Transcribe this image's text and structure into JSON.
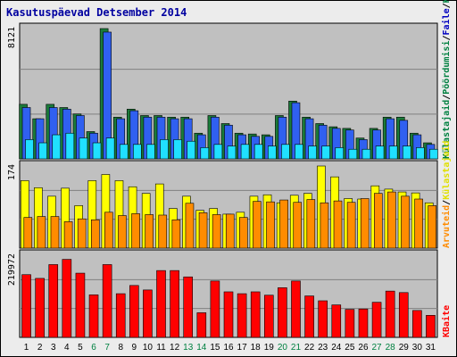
{
  "chart_data": {
    "type": "bar",
    "title": "Kasutuspäevad Detsember 2014",
    "categories": [
      "1",
      "2",
      "3",
      "4",
      "5",
      "6",
      "7",
      "8",
      "9",
      "10",
      "11",
      "12",
      "13",
      "14",
      "15",
      "16",
      "17",
      "18",
      "19",
      "20",
      "21",
      "22",
      "23",
      "24",
      "25",
      "26",
      "27",
      "28",
      "29",
      "30",
      "31"
    ],
    "weekend_days": [
      "6",
      "7",
      "13",
      "14",
      "20",
      "21",
      "27",
      "28"
    ],
    "panels": [
      {
        "id": "top",
        "ymax_label": "8121",
        "ymax": 8121,
        "series": [
          {
            "name": "Külastajaid",
            "color": "#1a7a3a",
            "values": [
              3400,
              2500,
              3400,
              3200,
              2800,
              1700,
              8121,
              2600,
              3100,
              2700,
              2700,
              2600,
              2600,
              1600,
              2700,
              2200,
              1600,
              1550,
              1500,
              2700,
              3600,
              2600,
              2200,
              2000,
              1900,
              1300,
              1900,
              2600,
              2600,
              1600,
              1000
            ]
          },
          {
            "name": "Pöördumisi",
            "color": "#3060f0",
            "values": [
              3200,
              2500,
              3200,
              3100,
              2700,
              1600,
              7900,
              2500,
              3000,
              2600,
              2600,
              2500,
              2500,
              1500,
              2600,
              2100,
              1500,
              1400,
              1400,
              2600,
              3500,
              2500,
              2100,
              1900,
              1800,
              1200,
              1800,
              2500,
              2400,
              1500,
              900
            ]
          },
          {
            "name": "Faile",
            "color": "#20e0ff",
            "values": [
              1200,
              1000,
              1500,
              1600,
              1300,
              1000,
              1300,
              900,
              900,
              900,
              1200,
              1200,
              1100,
              700,
              900,
              800,
              900,
              900,
              800,
              900,
              900,
              800,
              800,
              700,
              600,
              600,
              800,
              800,
              800,
              700,
              600
            ]
          }
        ]
      },
      {
        "id": "middle",
        "ymax_label": "174",
        "ymax": 174,
        "series": [
          {
            "name": "Külastajaid",
            "color": "#ffff00",
            "values": [
              143,
              128,
              110,
              127,
              90,
              143,
              156,
              143,
              130,
              116,
              136,
              84,
              110,
              80,
              84,
              72,
              76,
              110,
              113,
              96,
              112,
              116,
              174,
              151,
              105,
              104,
              132,
              125,
              119,
              117,
              96
            ]
          },
          {
            "name": "Arvuteid",
            "color": "#ff8c00",
            "values": [
              65,
              67,
              67,
              56,
              62,
              60,
              76,
              69,
              73,
              71,
              70,
              60,
              95,
              75,
              71,
              72,
              65,
              99,
              98,
              102,
              97,
              103,
              96,
              100,
              97,
              105,
              116,
              119,
              110,
              104,
              90
            ]
          }
        ]
      },
      {
        "id": "bottom",
        "ymax_label": "219972",
        "ymax": 219972,
        "series": [
          {
            "name": "KBaite",
            "color": "#ff0000",
            "values": [
              168000,
              158000,
              195000,
              209000,
              172000,
              114000,
              195000,
              117000,
              139000,
              127000,
              179000,
              179000,
              162000,
              66000,
              151000,
              122000,
              117000,
              122000,
              113000,
              133000,
              151000,
              111000,
              98000,
              87000,
              75000,
              76000,
              94000,
              124000,
              120000,
              72000,
              59000
            ]
          }
        ]
      }
    ],
    "legend_right_top": [
      "Külastajaid",
      "/",
      "Pöördumisi",
      "/",
      "Faile",
      "/",
      "Külastajaid"
    ],
    "legend_right_mid": [
      "Arvuteid",
      "/",
      "Külastajaid"
    ],
    "legend_right_bottom": [
      "KBaite"
    ],
    "colors": {
      "panel_bg": "#c0c0c0",
      "frame_bg": "#ececec",
      "title": "#0000a0",
      "weekday_label": "#000000",
      "weekend_label": "#008040",
      "legend_green": "#008040",
      "legend_blue": "#0000c0",
      "legend_orange": "#ff8c00",
      "legend_yellow": "#e0e000",
      "legend_red": "#ff0000"
    }
  }
}
